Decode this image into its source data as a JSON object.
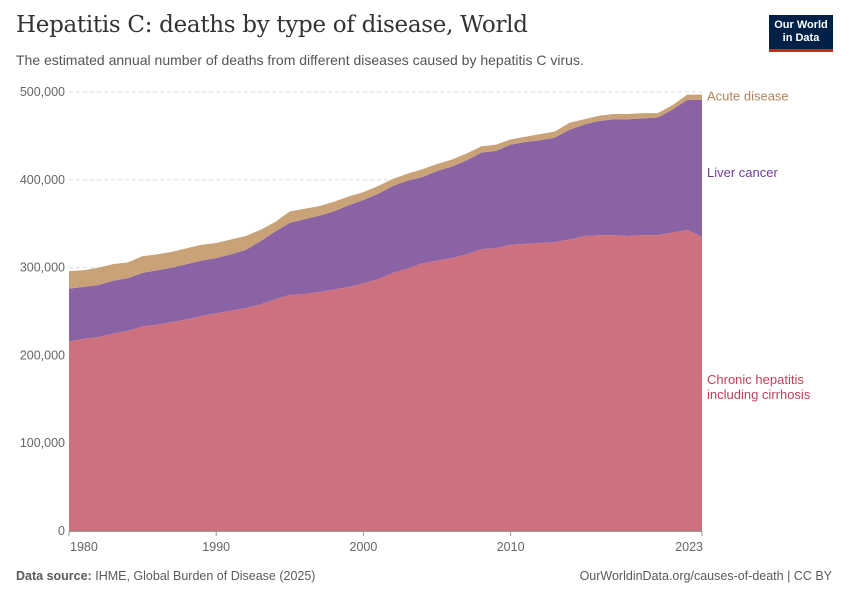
{
  "header": {
    "title": "Hepatitis C: deaths by type of disease, World",
    "subtitle": "The estimated annual number of deaths from different diseases caused by hepatitis C virus.",
    "logo_text": "Our World in Data"
  },
  "footer": {
    "source_label": "Data source:",
    "source_text": "IHME, Global Burden of Disease (2025)",
    "url_license": "OurWorldinData.org/causes-of-death | CC BY"
  },
  "chart_data": {
    "type": "area",
    "stacked": true,
    "title": "Hepatitis C: deaths by type of disease, World",
    "xlabel": "",
    "ylabel": "",
    "xlim": [
      1980,
      2023
    ],
    "ylim": [
      0,
      500000
    ],
    "grid": "horizontal dashed",
    "legend": "right (inline labels)",
    "x_tick_labels": [
      "1980",
      "1990",
      "2000",
      "2010",
      "2023"
    ],
    "x_ticks": [
      1980,
      1990,
      2000,
      2010,
      2023
    ],
    "y_tick_labels": [
      "0",
      "100,000",
      "200,000",
      "300,000",
      "400,000",
      "500,000"
    ],
    "y_ticks": [
      0,
      100000,
      200000,
      300000,
      400000,
      500000
    ],
    "x": [
      1980,
      1981,
      1982,
      1983,
      1984,
      1985,
      1986,
      1987,
      1988,
      1989,
      1990,
      1991,
      1992,
      1993,
      1994,
      1995,
      1996,
      1997,
      1998,
      1999,
      2000,
      2001,
      2002,
      2003,
      2004,
      2005,
      2006,
      2007,
      2008,
      2009,
      2010,
      2011,
      2012,
      2013,
      2014,
      2015,
      2016,
      2017,
      2018,
      2019,
      2020,
      2021,
      2022,
      2023
    ],
    "series": [
      {
        "name": "Chronic hepatitis including cirrhosis",
        "label_lines": [
          "Chronic hepatitis",
          "including cirrhosis"
        ],
        "color": "#cd717f",
        "label_color": "#c0405a",
        "values": [
          216000,
          219000,
          221000,
          225000,
          228000,
          233000,
          235000,
          238000,
          241000,
          245000,
          248000,
          251000,
          254000,
          258000,
          264000,
          269000,
          270000,
          272000,
          275000,
          278000,
          282000,
          287000,
          294000,
          299000,
          305000,
          308000,
          311000,
          315000,
          321000,
          322000,
          326000,
          327000,
          328000,
          329000,
          332000,
          336000,
          337000,
          337000,
          336000,
          337000,
          337000,
          340000,
          343000,
          335000
        ]
      },
      {
        "name": "Liver cancer",
        "label_lines": [
          "Liver cancer"
        ],
        "color": "#8a63a5",
        "label_color": "#6f3f94",
        "values": [
          60000,
          59000,
          59000,
          60000,
          60000,
          61000,
          62000,
          62000,
          63000,
          63000,
          63000,
          64000,
          66000,
          72000,
          77000,
          82000,
          85000,
          87000,
          89000,
          93000,
          95000,
          97000,
          99000,
          100000,
          98000,
          102000,
          104000,
          107000,
          110000,
          111000,
          114000,
          116000,
          117000,
          119000,
          125000,
          127000,
          130000,
          132000,
          133000,
          133000,
          134000,
          140000,
          148000,
          156000
        ]
      },
      {
        "name": "Acute disease",
        "label_lines": [
          "Acute disease"
        ],
        "color": "#c9a377",
        "label_color": "#b0845a",
        "values": [
          20000,
          19000,
          20000,
          19000,
          18000,
          19000,
          18000,
          18000,
          18000,
          18000,
          17000,
          17000,
          16000,
          13000,
          11000,
          13000,
          12000,
          11000,
          11000,
          10000,
          9000,
          9000,
          8000,
          8000,
          9000,
          8000,
          8000,
          8000,
          7000,
          7000,
          6000,
          6000,
          7000,
          7000,
          8000,
          6000,
          6000,
          6000,
          6000,
          6000,
          5000,
          5000,
          6000,
          6000
        ]
      }
    ]
  }
}
